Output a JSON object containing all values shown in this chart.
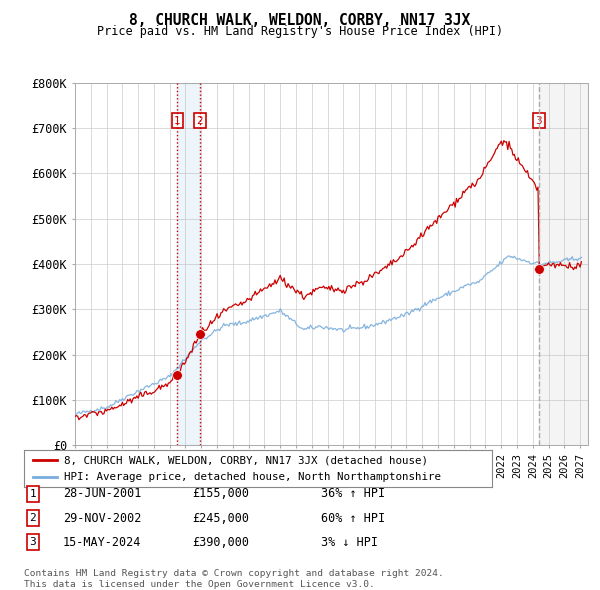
{
  "title": "8, CHURCH WALK, WELDON, CORBY, NN17 3JX",
  "subtitle": "Price paid vs. HM Land Registry's House Price Index (HPI)",
  "ylabel_ticks": [
    "£0",
    "£100K",
    "£200K",
    "£300K",
    "£400K",
    "£500K",
    "£600K",
    "£700K",
    "£800K"
  ],
  "ytick_values": [
    0,
    100000,
    200000,
    300000,
    400000,
    500000,
    600000,
    700000,
    800000
  ],
  "ylim": [
    0,
    800000
  ],
  "xlim_start": 1995.0,
  "xlim_end": 2027.5,
  "transactions": [
    {
      "label": "1",
      "date_str": "28-JUN-2001",
      "year": 2001.49,
      "price": 155000,
      "pct": "36%",
      "dir": "↑"
    },
    {
      "label": "2",
      "date_str": "29-NOV-2002",
      "year": 2002.91,
      "price": 245000,
      "pct": "60%",
      "dir": "↑"
    },
    {
      "label": "3",
      "date_str": "15-MAY-2024",
      "year": 2024.37,
      "price": 390000,
      "pct": "3%",
      "dir": "↓"
    }
  ],
  "legend_line1": "8, CHURCH WALK, WELDON, CORBY, NN17 3JX (detached house)",
  "legend_line2": "HPI: Average price, detached house, North Northamptonshire",
  "footer1": "Contains HM Land Registry data © Crown copyright and database right 2024.",
  "footer2": "This data is licensed under the Open Government Licence v3.0.",
  "red_color": "#cc0000",
  "blue_color": "#7aaddc",
  "background_color": "#ffffff",
  "grid_color": "#cccccc"
}
